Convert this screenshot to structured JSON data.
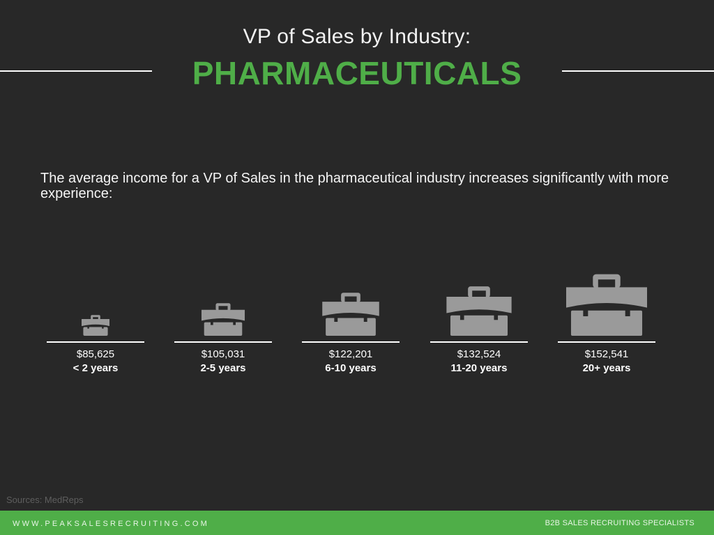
{
  "header": {
    "title": "VP of Sales by Industry:",
    "industry": "PHARMACEUTICALS"
  },
  "intro_text": "The average income for a VP of Sales in the pharmaceutical industry increases significantly with more experience:",
  "chart_data": {
    "type": "bar",
    "categories": [
      "< 2 years",
      "2-5 years",
      "6-10 years",
      "11-20 years",
      "20+ years"
    ],
    "values": [
      85625,
      105031,
      122201,
      132524,
      152541
    ],
    "value_labels": [
      "$85,625",
      "$105,031",
      "$122,201",
      "$132,524",
      "$152,541"
    ],
    "icon": "briefcase-icon",
    "icon_color": "#9a9a9a"
  },
  "source": "Sources: MedReps",
  "footer": {
    "website": "WWW.PEAKSALESRECRUITING.COM",
    "tagline": "B2B SALES RECRUITING SPECIALISTS"
  },
  "colors": {
    "background": "#282828",
    "accent": "#4fae48",
    "text": "#ffffff"
  }
}
